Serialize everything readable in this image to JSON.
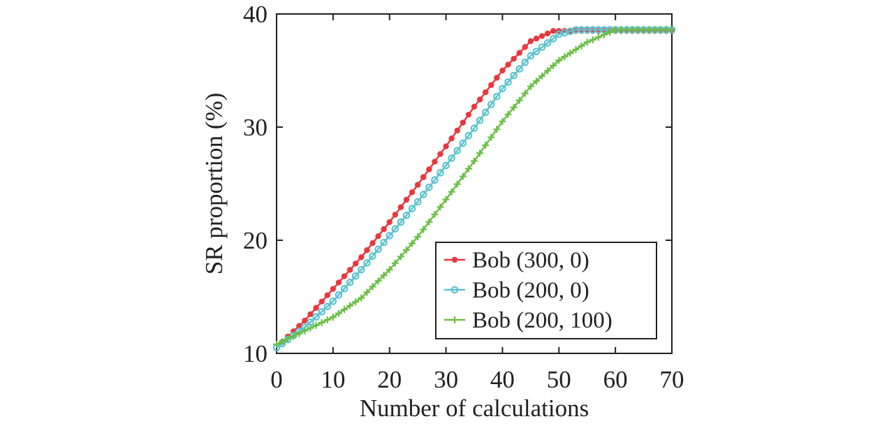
{
  "chart_data": {
    "type": "line",
    "title": "",
    "xlabel": "Number of calculations",
    "ylabel": "SR proportion (%)",
    "xlim": [
      0,
      70
    ],
    "ylim": [
      10,
      40
    ],
    "xticks": [
      "0",
      "10",
      "20",
      "30",
      "40",
      "50",
      "60",
      "70"
    ],
    "yticks": [
      "10",
      "20",
      "30",
      "40"
    ],
    "grid": false,
    "legend_position": "bottom-right",
    "series": [
      {
        "name": "Bob (300, 0)",
        "color": "#e8383d",
        "marker": "dot",
        "x": [
          1,
          5,
          10,
          15,
          20,
          25,
          30,
          35,
          40,
          45,
          49,
          55,
          60,
          65,
          70
        ],
        "y": [
          11.0,
          12.9,
          15.7,
          18.5,
          21.6,
          24.9,
          28.3,
          31.8,
          35.0,
          37.6,
          38.5,
          38.5,
          38.5,
          38.5,
          38.5
        ]
      },
      {
        "name": "Bob (200, 0)",
        "color": "#5bc3d0",
        "marker": "circle",
        "x": [
          0,
          5,
          10,
          15,
          20,
          25,
          30,
          35,
          40,
          45,
          50,
          53,
          60,
          65,
          70
        ],
        "y": [
          10.5,
          12.3,
          14.6,
          17.4,
          20.4,
          23.4,
          26.6,
          29.9,
          33.4,
          36.3,
          38.2,
          38.6,
          38.6,
          38.6,
          38.6
        ]
      },
      {
        "name": "Bob (200, 100)",
        "color": "#6abf45",
        "marker": "plus",
        "x": [
          0,
          5,
          10,
          15,
          20,
          25,
          30,
          35,
          40,
          45,
          50,
          55,
          60,
          65,
          70
        ],
        "y": [
          10.8,
          12.0,
          13.2,
          14.9,
          17.4,
          20.3,
          23.6,
          27.0,
          30.5,
          33.6,
          35.9,
          37.5,
          38.6,
          38.6,
          38.6
        ]
      }
    ]
  }
}
